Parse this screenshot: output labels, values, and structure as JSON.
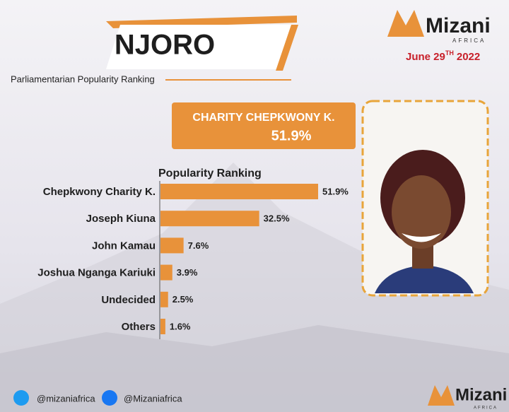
{
  "header": {
    "title": "NJORO",
    "subtitle": "Parliamentarian Popularity Ranking"
  },
  "brand": {
    "name": "Mizani",
    "region": "AFRICA",
    "date_main": "June 29",
    "date_suffix": "TH",
    "date_year": "2022"
  },
  "leader": {
    "name": "CHARITY CHEPKWONY K.",
    "value_label": "51.9%"
  },
  "chart_data": {
    "type": "bar",
    "orientation": "horizontal",
    "title": "Popularity Ranking",
    "categories": [
      "Chepkwony Charity K.",
      "Joseph Kiuna",
      "John Kamau",
      "Joshua Nganga Kariuki",
      "Undecided",
      "Others"
    ],
    "values": [
      51.9,
      32.5,
      7.6,
      3.9,
      2.5,
      1.6
    ],
    "value_labels": [
      "51.9%",
      "32.5%",
      "7.6%",
      "3.9%",
      "2.5%",
      "1.6%"
    ],
    "color": "#e8923a"
  },
  "footer": {
    "twitter": "@mizaniafrica",
    "facebook": "@Mizaniafrica"
  }
}
